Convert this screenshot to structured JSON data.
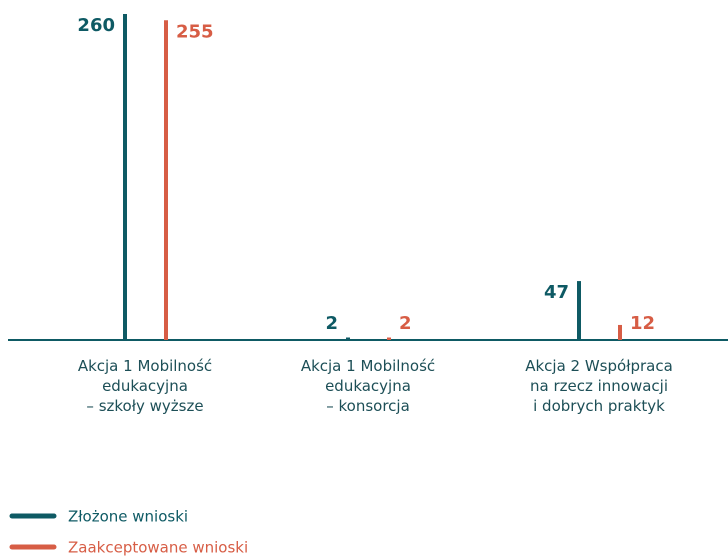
{
  "chart_data": {
    "type": "bar",
    "categories": [
      "Akcja 1 Mobilność\nedukacyjna\n– szkoły wyższe",
      "Akcja 1 Mobilność\nedukacyjna\n– konsorcja",
      "Akcja 2 Współpraca\nna rzecz innowacji\ni dobrych praktyk"
    ],
    "series": [
      {
        "name": "Złożone wnioski",
        "color": "#0e5a64",
        "values": [
          260,
          2,
          47
        ]
      },
      {
        "name": "Zaakceptowane wnioski",
        "color": "#d75d45",
        "values": [
          255,
          2,
          12
        ]
      }
    ]
  }
}
